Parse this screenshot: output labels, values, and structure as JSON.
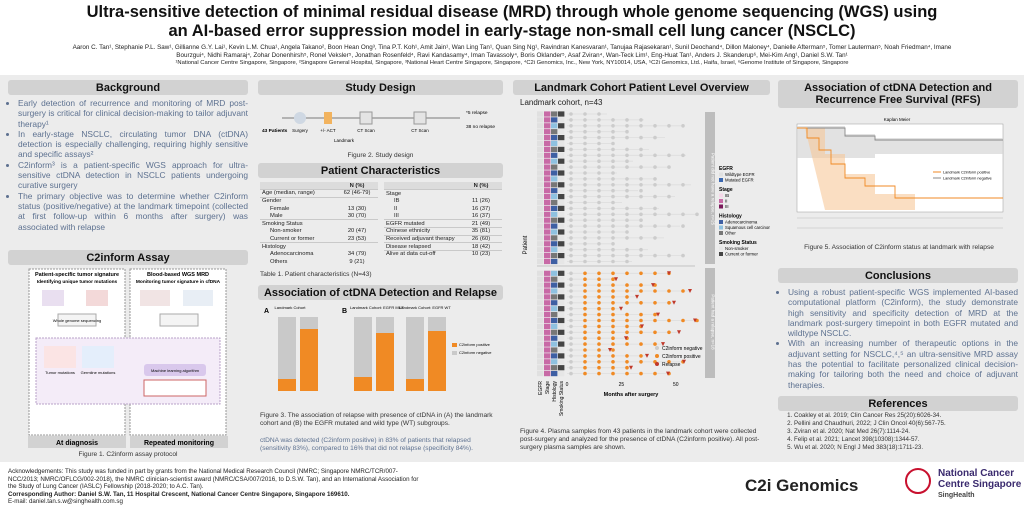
{
  "header": {
    "title": [
      "Ultra-sensitive detection of minimal residual disease (MRD) through whole genome sequencing (WGS) using",
      "an AI-based error suppression model in early-stage non-small cell lung cancer (NSCLC)"
    ],
    "authors": "Aaron C. Tan¹, Stephanie P.L. Saw¹, Gillianne G.Y. Lai¹, Kevin L.M. Chua¹, Angela Takano², Boon Hean Ong³, Tina P.T. Koh¹, Amit Jain¹, Wan Ling Tan¹, Quan Sing Ng¹, Ravindran Kanesvaran¹, Tanujaa Rajasekaran¹, Sunil Deochand⁴, Dillon Maloney⁴, Danielle Afterman⁵, Tomer Lauterman⁵, Noah Friedman⁴, Imane Bourzgui⁴, Nidhi Ramaraj⁴, Zohar Donenhirsh⁵, Ronel Veksler⁵, Jonathan Rosenfeld⁴, Ravi Kandasamy⁴, Iman Tavassoly⁴, Boris Oklander⁵, Asaf Zviran⁴, Wan-Teck Lim¹, Eng-Huat Tan¹, Anders J. Skanderup⁶, Mei-Kim Ang¹, Daniel S.W. Tan¹",
    "affiliations": "¹National Cancer Centre Singapore, Singapore, ²Singapore General Hospital, Singapore, ³National Heart Centre Singapore, Singapore, ⁴C2i Genomics, Inc., New York, NY10014, USA, ⁵C2i Genomics, Ltd., Haifa, Israel, ⁶Genome Institute of Singapore, Singapore"
  },
  "background": {
    "title": "Background",
    "bullets": [
      "Early detection of recurrence and monitoring of MRD post-surgery is critical for clinical decision-making to tailor adjuvant therapy¹",
      "In early-stage NSCLC, circulating tumor DNA (ctDNA) detection is especially challenging, requiring highly sensitive and specific assays²",
      "C2inform³ is a patient-specific WGS approach for ultra-sensitive ctDNA detection in NSCLC patients undergoing curative surgery",
      "The primary objective was to determine whether C2inform status (positive/negative) at the landmark timepoint (collected at first follow-up within 6 months after surgery) was associated with relapse"
    ]
  },
  "assay": {
    "title": "C2inform Assay",
    "left_title": "Patient-specific tumor signature",
    "left_subtitle": "Identifying unique tumor mutations",
    "right_title": "Blood-based WGS MRD",
    "right_subtitle": "Monitoring tumor signature in cfDNA",
    "wgs": "Whole genome sequencing",
    "tumor": "Tumor mutations",
    "germline": "Germline mutations",
    "ml": "Machine learning algorithm",
    "diagnosis": "At diagnosis",
    "monitoring": "Repeated monitoring",
    "caption": "Figure 1. C2inform assay protocol"
  },
  "study": {
    "title": "Study Design",
    "patients": "43 Patients",
    "surgery": "Surgery",
    "act": "+/- ACT",
    "landmark": "Landmark",
    "ct1": "CT Scan",
    "ct2": "CT Scan",
    "relapse": "*5 relapse",
    "norelapse": "38 no relapse",
    "caption": "Figure 2. Study design"
  },
  "characteristics": {
    "title": "Patient Characteristics",
    "header": "N (%)",
    "left": [
      [
        "Age (median, range)",
        "62 (46-79)"
      ],
      {
        "label": "Gender",
        "rows": [
          [
            "Female",
            "13 (30)"
          ],
          [
            "Male",
            "30 (70)"
          ]
        ]
      },
      {
        "label": "Smoking Status",
        "rows": [
          [
            "Non-smoker",
            "20 (47)"
          ],
          [
            "Current or former",
            "23 (53)"
          ]
        ]
      },
      {
        "label": "Histology",
        "rows": [
          [
            "Adenocarcinoma",
            "34 (79)"
          ],
          [
            "Others",
            "9 (21)"
          ]
        ]
      }
    ],
    "right": [
      {
        "label": "Stage",
        "rows": [
          [
            "IB",
            "11 (26)"
          ],
          [
            "II",
            "16 (37)"
          ],
          [
            "III",
            "16 (37)"
          ]
        ]
      },
      [
        "EGFR mutated",
        "21 (49)"
      ],
      [
        "Chinese ethnicity",
        "35 (81)"
      ],
      [
        "Received adjuvant therapy",
        "26 (60)"
      ],
      [
        "Disease relapsed",
        "18 (42)"
      ],
      [
        "Alive at data cut-off",
        "10 (23)"
      ]
    ],
    "caption": "Table 1. Patient characteristics (N=43)"
  },
  "relapse": {
    "title": "Association of ctDNA Detection and Relapse",
    "panel_a": "A",
    "panel_b": "B",
    "cohort": "Landmark Cohort",
    "cohort_mut": "Landmark Cohort: EGFR MUT",
    "cohort_wt": "Landmark Cohort: EGFR WT",
    "legend_pos": "C2inform positive",
    "legend_neg": "C2inform negative",
    "caption": "Figure 3. The association of relapse with presence of ctDNA in (A) the landmark cohort and (B) the EGFR mutated and wild type (WT) subgroups.",
    "text": "ctDNA was detected (C2inform positive) in 83% of patients that relapsed (sensitivity 83%), compared to 16% that did not relapse (specificity 84%)."
  },
  "landmark": {
    "title": "Landmark Cohort Patient Level Overview",
    "subtitle": "Landmark cohort, n=43",
    "side_top": "Patient did not have a relapse, n=25",
    "side_bottom": "Patient had a relapse, n=18",
    "y_label": "Patient",
    "columns": [
      "EGFR",
      "Stage",
      "Histology",
      "Smoking Status"
    ],
    "x_label": "Months after surgery",
    "xticks": [
      "0",
      "25",
      "50"
    ],
    "legend": {
      "EGFR": [
        "Wildtype EGFR",
        "Mutated EGFR"
      ],
      "Stage": [
        "IB",
        "II",
        "III"
      ],
      "Histology": [
        "Adenocarcinoma",
        "Squamous cell carcinoma",
        "Other"
      ],
      "Smoking Status": [
        "Non-smoker",
        "Current or former"
      ]
    },
    "legend_titles": [
      "EGFR",
      "Stage",
      "Histology",
      "Smoking Status"
    ],
    "marks": [
      "C2inform negative",
      "C2inform positive",
      "Relapse"
    ],
    "caption": "Figure 4. Plasma samples from 43 patients in the landmark cohort were collected post-surgery and analyzed for the presence of ctDNA (C2inform positive). All post-surgery plasma samples are shown."
  },
  "rfs": {
    "title": "Association of ctDNA Detection and Recurrence Free Survival (RFS)",
    "plot_title": "Kaplan Meier",
    "legend_pos": "Landmark C2inform positive",
    "legend_neg": "Landmark C2inform negative",
    "caption": "Figure 5. Association of C2inform status at landmark with relapse"
  },
  "conclusions": {
    "title": "Conclusions",
    "bullets": [
      "Using a robust patient-specific WGS implemented AI-based computational platform (C2inform), the study demonstrate high sensitivity and specificity detection of MRD at the landmark post-surgery timepoint in both EGFR mutated and wildtype NSCLC.",
      "With an increasing number of therapeutic options in the adjuvant setting for NSCLC,⁴,⁵ an ultra-sensitive MRD assay has the potential to facilitate personalized clinical decision-making for tailoring both the need and choice of adjuvant therapies."
    ]
  },
  "references": {
    "title": "References",
    "items": [
      "Coakley et al. 2019; Clin Cancer Res 25(20):6026-34.",
      "Pellini and Chaudhuri, 2022; J Clin Oncol 40(6):567-75.",
      "Zviran et al. 2020; Nat Med 26(7):1114-24.",
      "Felip et al. 2021; Lancet 398(10308):1344-57.",
      "Wu et al. 2020; N Engl J Med 383(18):1711-23."
    ]
  },
  "footer": {
    "acknowledgements": "Acknowledgements: This study was funded in part by grants from the National Medical Research Council (NMRC; Singapore NMRC/TCR/007-NCC/2013; NMRC/OFLCG/002-2018), the NMRC clinician-scientist award (NMRC/CSA/007/2016, to D.S.W. Tan), and an International Association for the Study of Lung Cancer (IASLC) Fellowship (2018-2020; to A.C. Tan).",
    "author": "Corresponding Author: Daniel S.W. Tan, 11 Hospital Crescent, National Cancer Centre Singapore, Singapore 169610.",
    "email": "E-mail: daniel.tan.s.w@singhealth.com.sg",
    "logo1": "C2i Genomics",
    "logo2": [
      "National Cancer",
      "Centre Singapore"
    ],
    "logo3": "SingHealth"
  }
}
